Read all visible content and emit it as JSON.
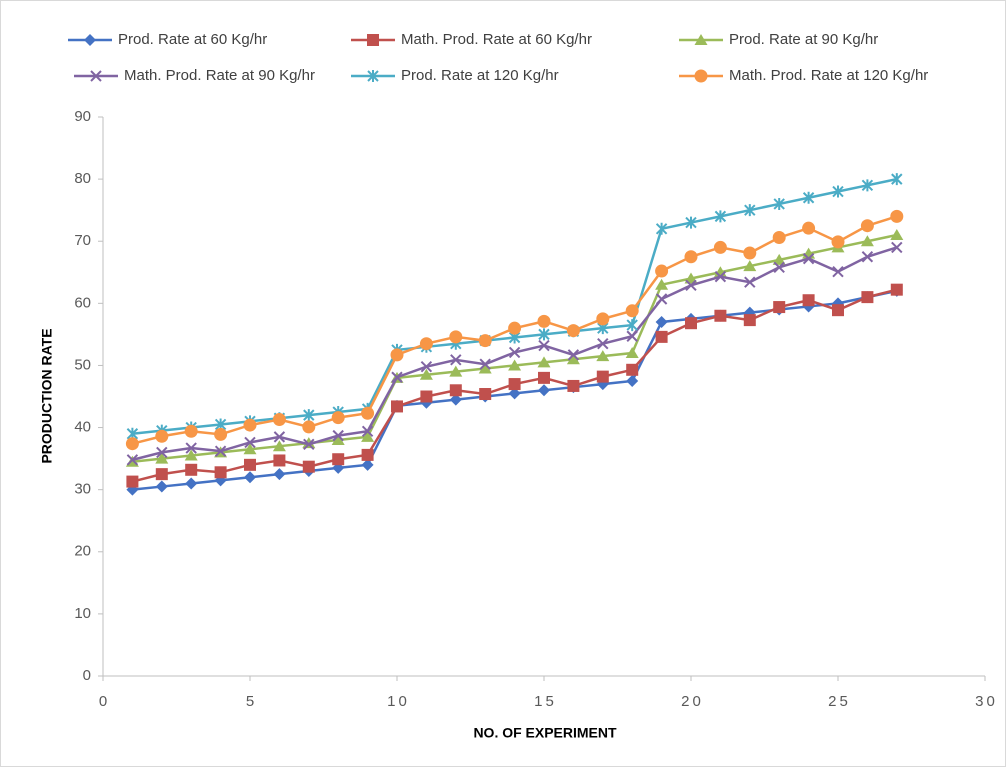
{
  "chart_data": {
    "type": "line",
    "x_label": "NO. OF EXPERIMENT",
    "y_label": "PRODUCTION RATE",
    "x": [
      1,
      2,
      3,
      4,
      5,
      6,
      7,
      8,
      9,
      10,
      11,
      12,
      13,
      14,
      15,
      16,
      17,
      18,
      19,
      20,
      21,
      22,
      23,
      24,
      25,
      26,
      27
    ],
    "xlim": [
      0,
      30
    ],
    "xticks": [
      0,
      5,
      10,
      15,
      20,
      25,
      30
    ],
    "ylim": [
      0,
      90
    ],
    "yticks": [
      0,
      10,
      20,
      30,
      40,
      50,
      60,
      70,
      80,
      90
    ],
    "grid": false,
    "series": [
      {
        "name": "Prod. Rate at 60 Kg/hr",
        "color": "#4472c4",
        "marker": "diamond",
        "values": [
          30,
          30.5,
          31,
          31.5,
          32,
          32.5,
          33,
          33.5,
          34,
          43.5,
          44,
          44.5,
          45,
          45.5,
          46,
          46.5,
          47,
          47.5,
          57,
          57.5,
          58,
          58.5,
          59,
          59.5,
          60,
          61,
          62
        ]
      },
      {
        "name": "Math. Prod. Rate at 60 Kg/hr",
        "color": "#c0504d",
        "marker": "square",
        "values": [
          31.3,
          32.5,
          33.2,
          32.8,
          34,
          34.7,
          33.7,
          34.9,
          35.6,
          43.4,
          45,
          46,
          45.4,
          47,
          48,
          46.7,
          48.2,
          49.3,
          54.6,
          56.8,
          58,
          57.3,
          59.4,
          60.5,
          58.9,
          61,
          62.2
        ]
      },
      {
        "name": "Prod. Rate at 90 Kg/hr",
        "color": "#9bbb59",
        "marker": "triangle",
        "values": [
          34.5,
          35,
          35.5,
          36,
          36.5,
          37,
          37.5,
          38,
          38.5,
          48,
          48.5,
          49,
          49.5,
          50,
          50.5,
          51,
          51.5,
          52,
          63,
          64,
          65,
          66,
          67,
          68,
          69,
          70,
          71
        ]
      },
      {
        "name": "Math. Prod. Rate at 90 Kg/hr",
        "color": "#8064a2",
        "marker": "x",
        "values": [
          34.8,
          36,
          36.7,
          36.2,
          37.6,
          38.5,
          37.3,
          38.7,
          39.4,
          48.1,
          49.8,
          50.9,
          50.2,
          52.1,
          53.2,
          51.7,
          53.5,
          54.7,
          60.7,
          62.9,
          64.3,
          63.4,
          65.8,
          67.2,
          65.1,
          67.5,
          69
        ]
      },
      {
        "name": "Prod. Rate at 120 Kg/hr",
        "color": "#4bacc6",
        "marker": "star",
        "values": [
          39,
          39.5,
          40,
          40.5,
          41,
          41.5,
          42,
          42.5,
          43,
          52.5,
          53,
          53.5,
          54,
          54.5,
          55,
          55.5,
          56,
          56.5,
          72,
          73,
          74,
          75,
          76,
          77,
          78,
          79,
          80
        ]
      },
      {
        "name": "Math. Prod. Rate at 120 Kg/hr",
        "color": "#f79646",
        "marker": "circle",
        "values": [
          37.4,
          38.6,
          39.4,
          38.9,
          40.4,
          41.3,
          40.1,
          41.6,
          42.3,
          51.7,
          53.5,
          54.6,
          54,
          56,
          57.1,
          55.6,
          57.5,
          58.8,
          65.2,
          67.5,
          69,
          68.1,
          70.6,
          72.1,
          69.9,
          72.5,
          74
        ]
      }
    ]
  }
}
